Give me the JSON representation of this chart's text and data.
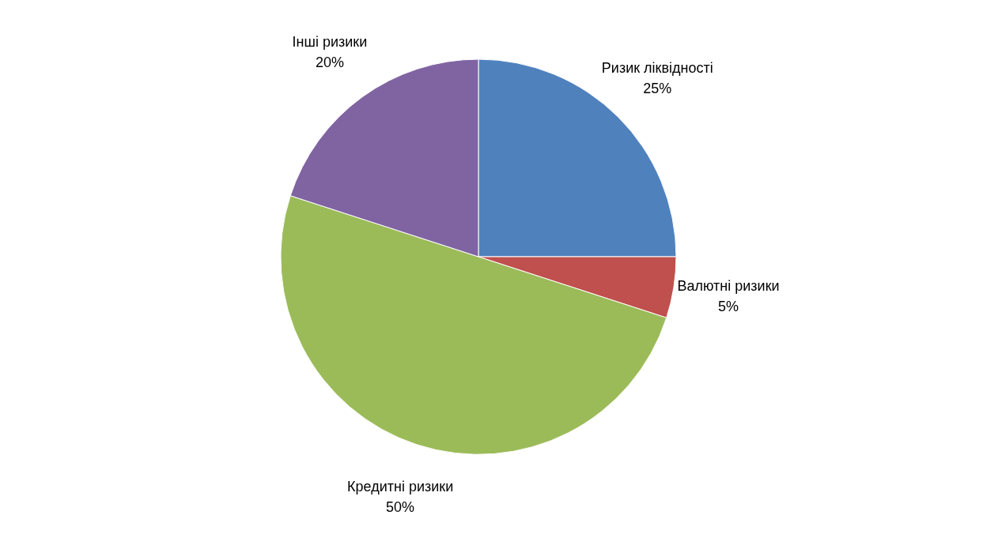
{
  "chart_data": {
    "type": "pie",
    "categories": [
      "Ризик ліквідності",
      "Валютні ризики",
      "Кредитні ризики",
      "Інші ризики"
    ],
    "values": [
      25,
      5,
      50,
      20
    ],
    "value_labels": [
      "25%",
      "5%",
      "50%",
      "20%"
    ],
    "colors": [
      "#4f81bd",
      "#c0504d",
      "#9bbb59",
      "#8064a2"
    ],
    "legend": false
  }
}
